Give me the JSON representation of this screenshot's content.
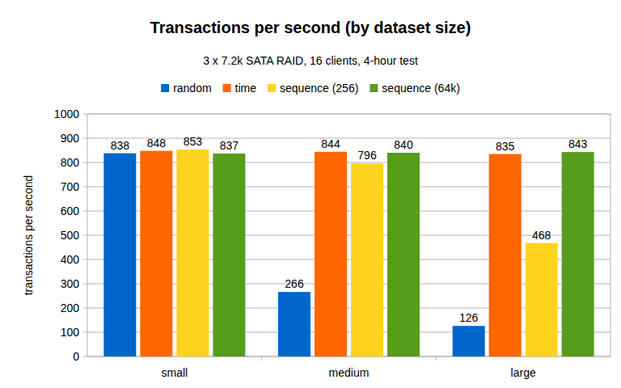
{
  "chart_data": {
    "type": "bar",
    "title": "Transactions per second (by dataset size)",
    "subtitle": "3 x 7.2k SATA RAID, 16 clients, 4-hour test",
    "y_label": "transactions per second",
    "categories": [
      "small",
      "medium",
      "large"
    ],
    "series": [
      {
        "name": "random",
        "color": "#0066cc",
        "values": [
          838,
          266,
          126
        ]
      },
      {
        "name": "time",
        "color": "#ff6600",
        "values": [
          848,
          844,
          835
        ]
      },
      {
        "name": "sequence (256)",
        "color": "#ffd320",
        "values": [
          853,
          796,
          468
        ]
      },
      {
        "name": "sequence (64k)",
        "color": "#579d1c",
        "values": [
          837,
          840,
          843
        ]
      }
    ],
    "ylim": [
      0,
      1000
    ],
    "yticks": [
      0,
      100,
      200,
      300,
      400,
      500,
      600,
      700,
      800,
      900,
      1000
    ],
    "grid": true,
    "legend": "top",
    "data_labels": true
  }
}
